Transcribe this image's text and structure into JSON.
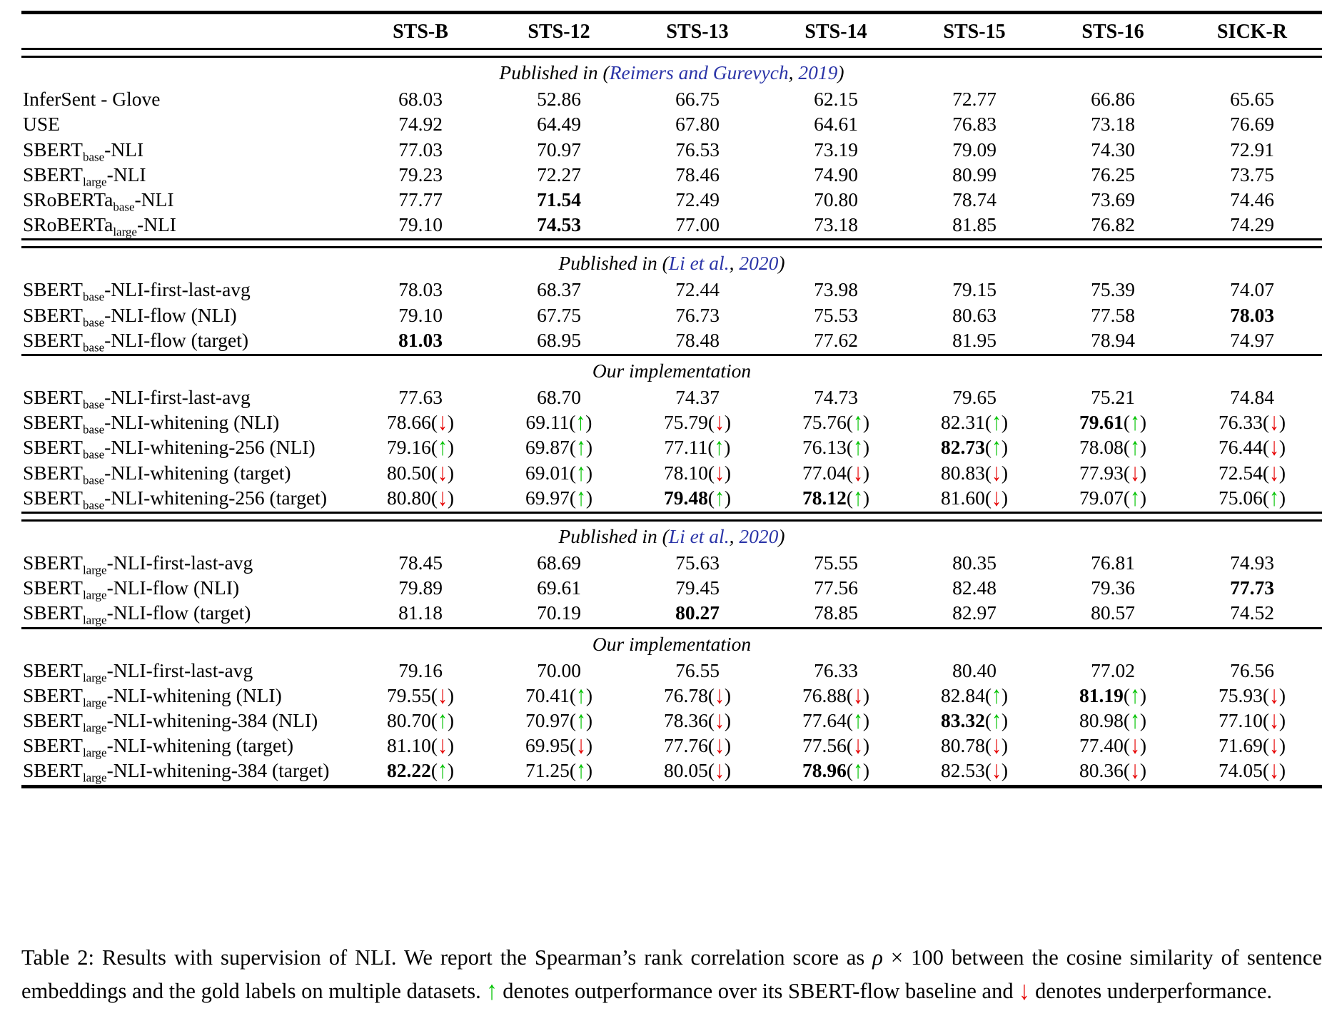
{
  "colors": {
    "citation_blue": "#2b35a8",
    "up_green": "#00c300",
    "down_red": "#e60000"
  },
  "columns": [
    "STS-B",
    "STS-12",
    "STS-13",
    "STS-14",
    "STS-15",
    "STS-16",
    "SICK-R"
  ],
  "sections": [
    {
      "rule": null,
      "header_parts": [
        {
          "text": "Published in ("
        },
        {
          "text": "Reimers and Gurevych",
          "link": true
        },
        {
          "text": ", "
        },
        {
          "text": "2019",
          "link": true
        },
        {
          "text": ")"
        }
      ],
      "rows": [
        {
          "label": [
            {
              "t": "InferSent - Glove"
            }
          ],
          "cells": [
            {
              "v": "68.03"
            },
            {
              "v": "52.86"
            },
            {
              "v": "66.75"
            },
            {
              "v": "62.15"
            },
            {
              "v": "72.77"
            },
            {
              "v": "66.86"
            },
            {
              "v": "65.65"
            }
          ]
        },
        {
          "label": [
            {
              "t": "USE"
            }
          ],
          "cells": [
            {
              "v": "74.92"
            },
            {
              "v": "64.49"
            },
            {
              "v": "67.80"
            },
            {
              "v": "64.61"
            },
            {
              "v": "76.83"
            },
            {
              "v": "73.18"
            },
            {
              "v": "76.69"
            }
          ]
        },
        {
          "label": [
            {
              "t": "SBERT"
            },
            {
              "t": "base",
              "sub": true
            },
            {
              "t": "-NLI"
            }
          ],
          "cells": [
            {
              "v": "77.03"
            },
            {
              "v": "70.97"
            },
            {
              "v": "76.53"
            },
            {
              "v": "73.19"
            },
            {
              "v": "79.09"
            },
            {
              "v": "74.30"
            },
            {
              "v": "72.91"
            }
          ]
        },
        {
          "label": [
            {
              "t": "SBERT"
            },
            {
              "t": "large",
              "sub": true
            },
            {
              "t": "-NLI"
            }
          ],
          "cells": [
            {
              "v": "79.23"
            },
            {
              "v": "72.27"
            },
            {
              "v": "78.46"
            },
            {
              "v": "74.90"
            },
            {
              "v": "80.99"
            },
            {
              "v": "76.25"
            },
            {
              "v": "73.75"
            }
          ]
        },
        {
          "label": [
            {
              "t": "SRoBERTa"
            },
            {
              "t": "base",
              "sub": true
            },
            {
              "t": "-NLI"
            }
          ],
          "cells": [
            {
              "v": "77.77"
            },
            {
              "v": "71.54",
              "bold": true
            },
            {
              "v": "72.49"
            },
            {
              "v": "70.80"
            },
            {
              "v": "78.74"
            },
            {
              "v": "73.69"
            },
            {
              "v": "74.46"
            }
          ]
        },
        {
          "label": [
            {
              "t": "SRoBERTa"
            },
            {
              "t": "large",
              "sub": true
            },
            {
              "t": "-NLI"
            }
          ],
          "cells": [
            {
              "v": "79.10"
            },
            {
              "v": "74.53",
              "bold": true
            },
            {
              "v": "77.00"
            },
            {
              "v": "73.18"
            },
            {
              "v": "81.85"
            },
            {
              "v": "76.82"
            },
            {
              "v": "74.29"
            }
          ]
        }
      ]
    },
    {
      "rule": "double",
      "header_parts": [
        {
          "text": "Published in ("
        },
        {
          "text": "Li et al.",
          "link": true
        },
        {
          "text": ", "
        },
        {
          "text": "2020",
          "link": true
        },
        {
          "text": ")"
        }
      ],
      "rows": [
        {
          "label": [
            {
              "t": "SBERT"
            },
            {
              "t": "base",
              "sub": true
            },
            {
              "t": "-NLI-first-last-avg"
            }
          ],
          "cells": [
            {
              "v": "78.03"
            },
            {
              "v": "68.37"
            },
            {
              "v": "72.44"
            },
            {
              "v": "73.98"
            },
            {
              "v": "79.15"
            },
            {
              "v": "75.39"
            },
            {
              "v": "74.07"
            }
          ]
        },
        {
          "label": [
            {
              "t": "SBERT"
            },
            {
              "t": "base",
              "sub": true
            },
            {
              "t": "-NLI-flow (NLI)"
            }
          ],
          "cells": [
            {
              "v": "79.10"
            },
            {
              "v": "67.75"
            },
            {
              "v": "76.73"
            },
            {
              "v": "75.53"
            },
            {
              "v": "80.63"
            },
            {
              "v": "77.58"
            },
            {
              "v": "78.03",
              "bold": true
            }
          ]
        },
        {
          "label": [
            {
              "t": "SBERT"
            },
            {
              "t": "base",
              "sub": true
            },
            {
              "t": "-NLI-flow (target)"
            }
          ],
          "cells": [
            {
              "v": "81.03",
              "bold": true
            },
            {
              "v": "68.95"
            },
            {
              "v": "78.48"
            },
            {
              "v": "77.62"
            },
            {
              "v": "81.95"
            },
            {
              "v": "78.94"
            },
            {
              "v": "74.97"
            }
          ]
        }
      ]
    },
    {
      "rule": "single",
      "header_parts": [
        {
          "text": "Our implementation"
        }
      ],
      "rows": [
        {
          "label": [
            {
              "t": "SBERT"
            },
            {
              "t": "base",
              "sub": true
            },
            {
              "t": "-NLI-first-last-avg"
            }
          ],
          "cells": [
            {
              "v": "77.63"
            },
            {
              "v": "68.70"
            },
            {
              "v": "74.37"
            },
            {
              "v": "74.73"
            },
            {
              "v": "79.65"
            },
            {
              "v": "75.21"
            },
            {
              "v": "74.84"
            }
          ]
        },
        {
          "label": [
            {
              "t": "SBERT"
            },
            {
              "t": "base",
              "sub": true
            },
            {
              "t": "-NLI-whitening (NLI)"
            }
          ],
          "cells": [
            {
              "v": "78.66",
              "arrow": "down"
            },
            {
              "v": "69.11",
              "arrow": "up"
            },
            {
              "v": "75.79",
              "arrow": "down"
            },
            {
              "v": "75.76",
              "arrow": "up"
            },
            {
              "v": "82.31",
              "arrow": "up"
            },
            {
              "v": "79.61",
              "bold": true,
              "arrow": "up"
            },
            {
              "v": "76.33",
              "arrow": "down"
            }
          ]
        },
        {
          "label": [
            {
              "t": "SBERT"
            },
            {
              "t": "base",
              "sub": true
            },
            {
              "t": "-NLI-whitening-256 (NLI)"
            }
          ],
          "cells": [
            {
              "v": "79.16",
              "arrow": "up"
            },
            {
              "v": "69.87",
              "arrow": "up"
            },
            {
              "v": "77.11",
              "arrow": "up"
            },
            {
              "v": "76.13",
              "arrow": "up"
            },
            {
              "v": "82.73",
              "bold": true,
              "arrow": "up"
            },
            {
              "v": "78.08",
              "arrow": "up"
            },
            {
              "v": "76.44",
              "arrow": "down"
            }
          ]
        },
        {
          "label": [
            {
              "t": "SBERT"
            },
            {
              "t": "base",
              "sub": true
            },
            {
              "t": "-NLI-whitening (target)"
            }
          ],
          "cells": [
            {
              "v": "80.50",
              "arrow": "down"
            },
            {
              "v": "69.01",
              "arrow": "up"
            },
            {
              "v": "78.10",
              "arrow": "down"
            },
            {
              "v": "77.04",
              "arrow": "down"
            },
            {
              "v": "80.83",
              "arrow": "down"
            },
            {
              "v": "77.93",
              "arrow": "down"
            },
            {
              "v": "72.54",
              "arrow": "down"
            }
          ]
        },
        {
          "label": [
            {
              "t": "SBERT"
            },
            {
              "t": "base",
              "sub": true
            },
            {
              "t": "-NLI-whitening-256 (target)"
            }
          ],
          "cells": [
            {
              "v": "80.80",
              "arrow": "down"
            },
            {
              "v": "69.97",
              "arrow": "up"
            },
            {
              "v": "79.48",
              "bold": true,
              "arrow": "up"
            },
            {
              "v": "78.12",
              "bold": true,
              "arrow": "up"
            },
            {
              "v": "81.60",
              "arrow": "down"
            },
            {
              "v": "79.07",
              "arrow": "up"
            },
            {
              "v": "75.06",
              "arrow": "up"
            }
          ]
        }
      ]
    },
    {
      "rule": "double",
      "header_parts": [
        {
          "text": "Published in ("
        },
        {
          "text": "Li et al.",
          "link": true
        },
        {
          "text": ", "
        },
        {
          "text": "2020",
          "link": true
        },
        {
          "text": ")"
        }
      ],
      "rows": [
        {
          "label": [
            {
              "t": "SBERT"
            },
            {
              "t": "large",
              "sub": true
            },
            {
              "t": "-NLI-first-last-avg"
            }
          ],
          "cells": [
            {
              "v": "78.45"
            },
            {
              "v": "68.69"
            },
            {
              "v": "75.63"
            },
            {
              "v": "75.55"
            },
            {
              "v": "80.35"
            },
            {
              "v": "76.81"
            },
            {
              "v": "74.93"
            }
          ]
        },
        {
          "label": [
            {
              "t": "SBERT"
            },
            {
              "t": "large",
              "sub": true
            },
            {
              "t": "-NLI-flow (NLI)"
            }
          ],
          "cells": [
            {
              "v": "79.89"
            },
            {
              "v": "69.61"
            },
            {
              "v": "79.45"
            },
            {
              "v": "77.56"
            },
            {
              "v": "82.48"
            },
            {
              "v": "79.36"
            },
            {
              "v": "77.73",
              "bold": true
            }
          ]
        },
        {
          "label": [
            {
              "t": "SBERT"
            },
            {
              "t": "large",
              "sub": true
            },
            {
              "t": "-NLI-flow (target)"
            }
          ],
          "cells": [
            {
              "v": "81.18"
            },
            {
              "v": "70.19"
            },
            {
              "v": "80.27",
              "bold": true
            },
            {
              "v": "78.85"
            },
            {
              "v": "82.97"
            },
            {
              "v": "80.57"
            },
            {
              "v": "74.52"
            }
          ]
        }
      ]
    },
    {
      "rule": "single",
      "header_parts": [
        {
          "text": "Our implementation"
        }
      ],
      "rows": [
        {
          "label": [
            {
              "t": "SBERT"
            },
            {
              "t": "large",
              "sub": true
            },
            {
              "t": "-NLI-first-last-avg"
            }
          ],
          "cells": [
            {
              "v": "79.16"
            },
            {
              "v": "70.00"
            },
            {
              "v": "76.55"
            },
            {
              "v": "76.33"
            },
            {
              "v": "80.40"
            },
            {
              "v": "77.02"
            },
            {
              "v": "76.56"
            }
          ]
        },
        {
          "label": [
            {
              "t": "SBERT"
            },
            {
              "t": "large",
              "sub": true
            },
            {
              "t": "-NLI-whitening (NLI)"
            }
          ],
          "cells": [
            {
              "v": "79.55",
              "arrow": "down"
            },
            {
              "v": "70.41",
              "arrow": "up"
            },
            {
              "v": "76.78",
              "arrow": "down"
            },
            {
              "v": "76.88",
              "arrow": "down"
            },
            {
              "v": "82.84",
              "arrow": "up"
            },
            {
              "v": "81.19",
              "bold": true,
              "arrow": "up"
            },
            {
              "v": "75.93",
              "arrow": "down"
            }
          ]
        },
        {
          "label": [
            {
              "t": "SBERT"
            },
            {
              "t": "large",
              "sub": true
            },
            {
              "t": "-NLI-whitening-384 (NLI)"
            }
          ],
          "cells": [
            {
              "v": "80.70",
              "arrow": "up"
            },
            {
              "v": "70.97",
              "arrow": "up"
            },
            {
              "v": "78.36",
              "arrow": "down"
            },
            {
              "v": "77.64",
              "arrow": "up"
            },
            {
              "v": "83.32",
              "bold": true,
              "arrow": "up"
            },
            {
              "v": "80.98",
              "arrow": "up"
            },
            {
              "v": "77.10",
              "arrow": "down"
            }
          ]
        },
        {
          "label": [
            {
              "t": "SBERT"
            },
            {
              "t": "large",
              "sub": true
            },
            {
              "t": "-NLI-whitening (target)"
            }
          ],
          "cells": [
            {
              "v": "81.10",
              "arrow": "down"
            },
            {
              "v": "69.95",
              "arrow": "down"
            },
            {
              "v": "77.76",
              "arrow": "down"
            },
            {
              "v": "77.56",
              "arrow": "down"
            },
            {
              "v": "80.78",
              "arrow": "down"
            },
            {
              "v": "77.40",
              "arrow": "down"
            },
            {
              "v": "71.69",
              "arrow": "down"
            }
          ]
        },
        {
          "label": [
            {
              "t": "SBERT"
            },
            {
              "t": "large",
              "sub": true
            },
            {
              "t": "-NLI-whitening-384 (target)"
            }
          ],
          "cells": [
            {
              "v": "82.22",
              "bold": true,
              "arrow": "up"
            },
            {
              "v": "71.25",
              "arrow": "up"
            },
            {
              "v": "80.05",
              "arrow": "down"
            },
            {
              "v": "78.96",
              "bold": true,
              "arrow": "up"
            },
            {
              "v": "82.53",
              "arrow": "down"
            },
            {
              "v": "80.36",
              "arrow": "down"
            },
            {
              "v": "74.05",
              "arrow": "down"
            }
          ]
        }
      ]
    }
  ],
  "caption_parts": [
    {
      "t": "Table 2: Results with supervision of NLI. We report the Spearman’s rank correlation score as "
    },
    {
      "t": "ρ",
      "style": "math"
    },
    {
      "t": " × 100 between the cosine similarity of sentence embeddings and the gold labels on multiple datasets. "
    },
    {
      "t": "↑",
      "style": "up"
    },
    {
      "t": " denotes outperformance over its SBERT-flow baseline and "
    },
    {
      "t": "↓",
      "style": "down"
    },
    {
      "t": " denotes underperformance."
    }
  ]
}
